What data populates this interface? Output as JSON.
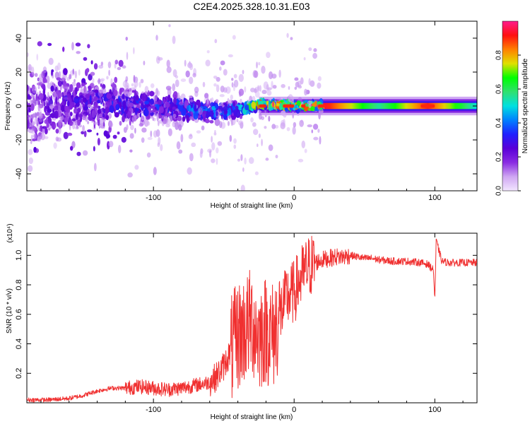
{
  "title": "C2E4.2025.328.10.31.E03",
  "colorbar": {
    "label": "Normalized spectral amplitude",
    "ticks": [
      "0.0",
      "0.2",
      "0.4",
      "0.6",
      "0.8"
    ],
    "tick_values": [
      0.0,
      0.2,
      0.4,
      0.6,
      0.8
    ],
    "range": [
      0,
      1
    ],
    "colors": [
      "#f2e6ff",
      "#cfa6f2",
      "#8a2be2",
      "#5a00d8",
      "#2020ff",
      "#0080ff",
      "#00e0e0",
      "#30e070",
      "#00ff00",
      "#e0e000",
      "#ff8000",
      "#ff1010",
      "#ff1a8c"
    ]
  },
  "chart_data": [
    {
      "type": "heatmap",
      "title": "C2E4.2025.328.10.31.E03",
      "xlabel": "Height of straight line (km)",
      "ylabel": "Frequency (Hz)",
      "xlim": [
        -190,
        130
      ],
      "ylim": [
        -50,
        50
      ],
      "xticks": [
        -100,
        0,
        100
      ],
      "xtick_labels": [
        "-100",
        "0",
        "100"
      ],
      "yticks": [
        -40,
        -20,
        0,
        20,
        40
      ],
      "ytick_labels": [
        "-40",
        "-20",
        "0",
        "20",
        "40"
      ],
      "z_range": [
        0,
        1
      ],
      "description_points": {
        "x": [
          -190,
          -150,
          -100,
          -60,
          -40,
          -25,
          0,
          20,
          60,
          95,
          130
        ],
        "bandwidth_hz": [
          40,
          20,
          12,
          8,
          6,
          3,
          3,
          3,
          3,
          3,
          3
        ],
        "center_hz": [
          0,
          2,
          0,
          -3,
          -2,
          1,
          0,
          0,
          0,
          1,
          0
        ],
        "peak_amplitude": [
          0.2,
          0.3,
          0.35,
          0.45,
          0.5,
          0.95,
          0.95,
          0.95,
          0.55,
          0.9,
          0.5
        ]
      }
    },
    {
      "type": "line",
      "xlabel": "Height of straight line (km)",
      "ylabel": "SNR (10 * v/v)",
      "y_multiplier": "(x10⁴)",
      "xlim": [
        -190,
        130
      ],
      "ylim": [
        0,
        1.15
      ],
      "xticks": [
        -100,
        0,
        100
      ],
      "xtick_labels": [
        "-100",
        "0",
        "100"
      ],
      "yticks": [
        0.2,
        0.4,
        0.6,
        0.8,
        1.0
      ],
      "ytick_labels": [
        "0.2",
        "0.4",
        "0.6",
        "0.8",
        "1.0"
      ],
      "series": [
        {
          "name": "SNR",
          "color": "#f03030",
          "x": [
            -190,
            -175,
            -160,
            -150,
            -140,
            -130,
            -120,
            -110,
            -100,
            -90,
            -80,
            -70,
            -60,
            -55,
            -50,
            -45,
            -40,
            -35,
            -30,
            -25,
            -20,
            -15,
            -10,
            -5,
            0,
            5,
            10,
            15,
            20,
            25,
            30,
            35,
            40,
            45,
            50,
            55,
            60,
            70,
            80,
            90,
            95,
            99,
            100,
            101,
            105,
            110,
            120,
            130
          ],
          "values": [
            0.02,
            0.02,
            0.03,
            0.05,
            0.08,
            0.1,
            0.1,
            0.11,
            0.1,
            0.09,
            0.1,
            0.12,
            0.14,
            0.18,
            0.25,
            0.35,
            0.45,
            0.5,
            0.55,
            0.45,
            0.5,
            0.45,
            0.6,
            0.72,
            0.75,
            0.85,
            0.92,
            0.95,
            0.97,
            0.98,
            0.99,
            0.99,
            1.0,
            0.99,
            0.98,
            0.98,
            0.97,
            0.96,
            0.96,
            0.95,
            0.94,
            0.9,
            0.7,
            1.1,
            0.96,
            0.95,
            0.95,
            0.95
          ]
        }
      ]
    }
  ]
}
